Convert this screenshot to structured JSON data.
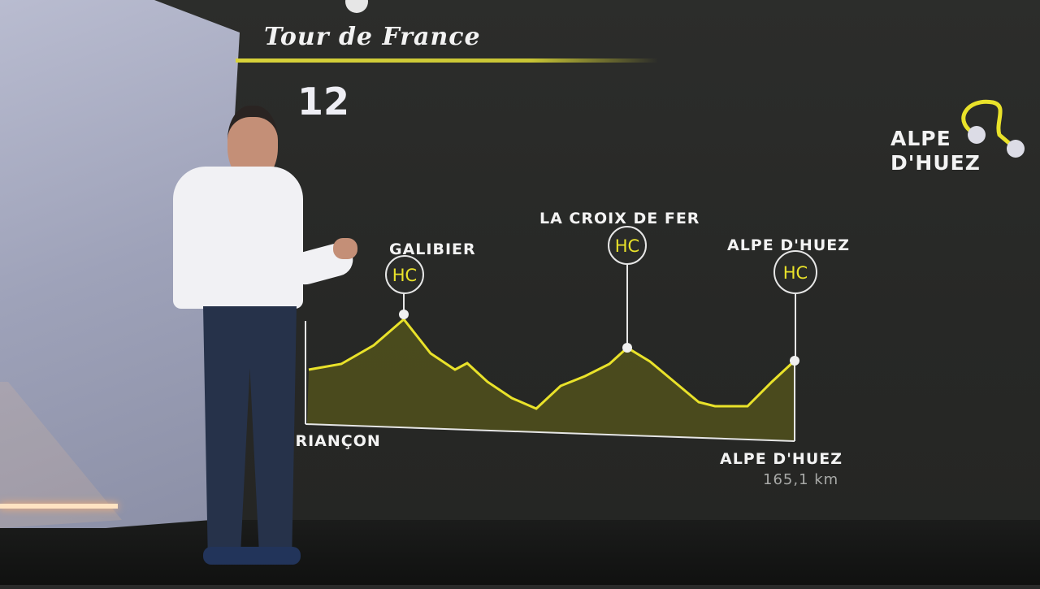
{
  "broadcast": {
    "logo_text": "Tour de France",
    "stage_number": "12",
    "accent_color": "#e9e22a",
    "profile_fill": "#5b5a1e",
    "profile": {
      "start": "BRIANÇON",
      "finish": "ALPE D'HUEZ",
      "distance": "165,1 km",
      "climbs": [
        {
          "name": "GALIBIER",
          "category": "HC"
        },
        {
          "name": "LA CROIX DE FER",
          "category": "HC"
        },
        {
          "name": "ALPE D'HUEZ",
          "category": "HC"
        }
      ]
    },
    "minimap": {
      "label_line1": "ALPE",
      "label_line2": "D'HUEZ"
    }
  }
}
